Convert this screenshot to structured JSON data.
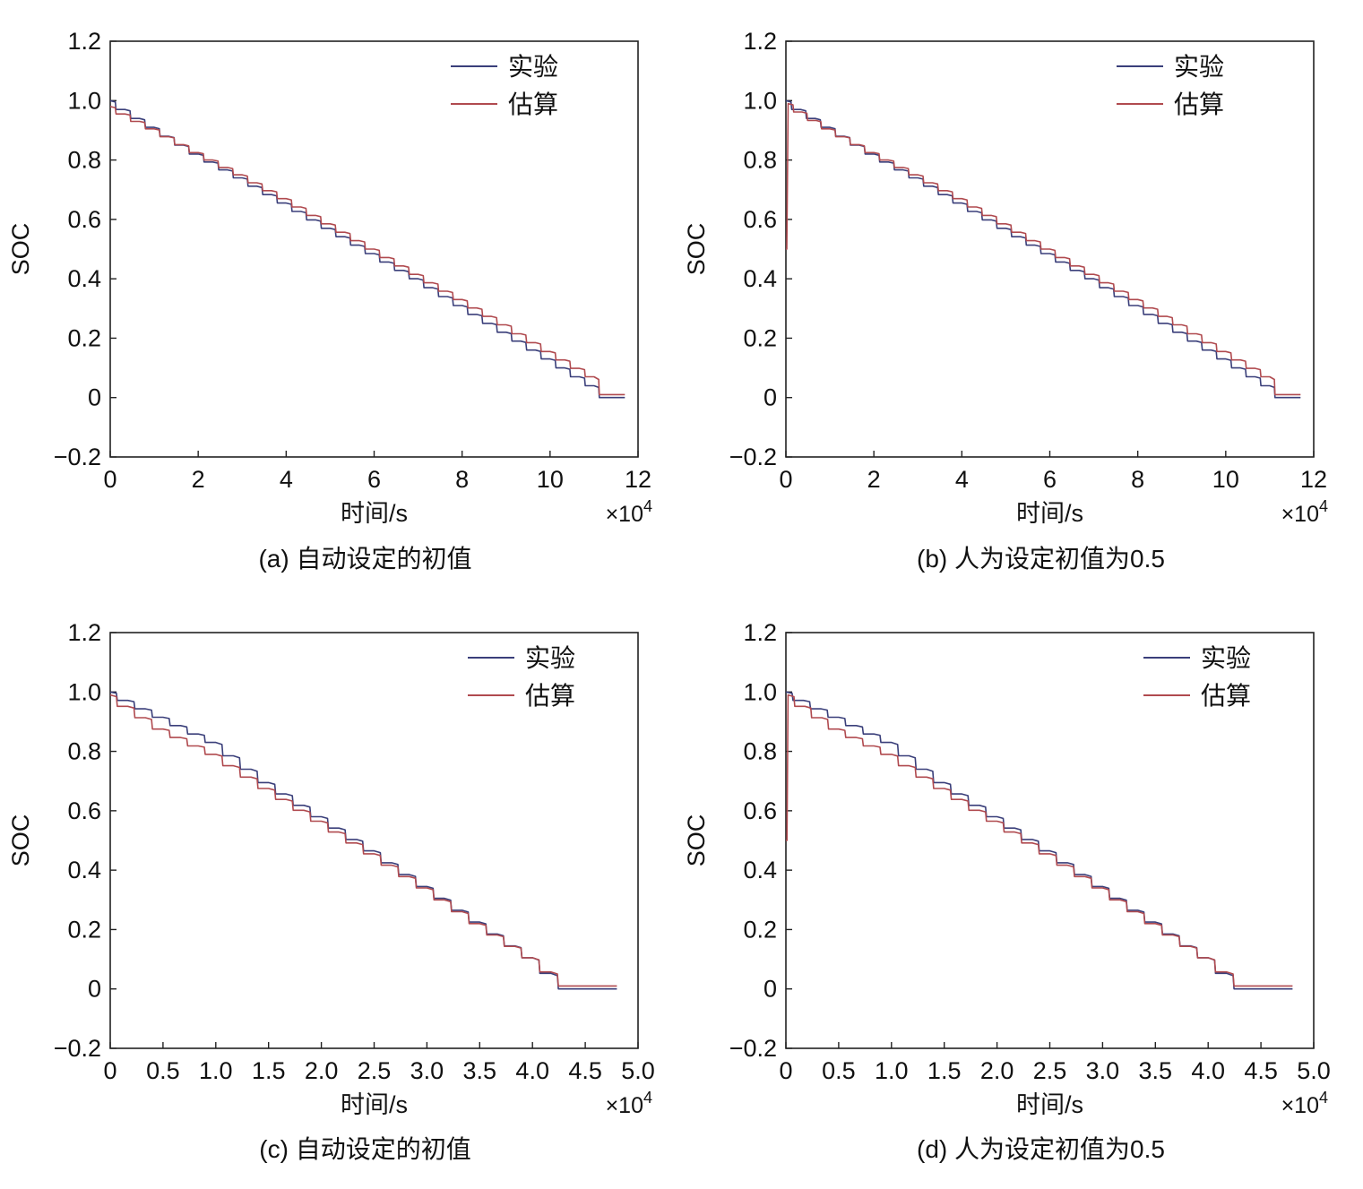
{
  "colors": {
    "experiment": "#3a3f7a",
    "estimate": "#b04a4f",
    "axis": "#222222"
  },
  "chart_data": [
    {
      "type": "line",
      "caption": "(a) 自动设定的初值",
      "xlabel": "时间/s",
      "ylabel": "SOC",
      "x_multiplier": "×10",
      "x_multiplier_exp": "4",
      "xlim": [
        0,
        12
      ],
      "ylim": [
        -0.2,
        1.2
      ],
      "xticks": [
        "0",
        "2",
        "4",
        "6",
        "8",
        "10",
        "12"
      ],
      "yticks": [
        "1.2",
        "1.0",
        "0.8",
        "0.6",
        "0.4",
        "0.2",
        "0",
        "−0.2"
      ],
      "grid": false,
      "legend": "top-right",
      "series": [
        {
          "name": "实验",
          "x": [
            0,
            1,
            2,
            3,
            4,
            5,
            6,
            7,
            8,
            9,
            10,
            11,
            11.3,
            11.7
          ],
          "y": [
            1.0,
            0.91,
            0.82,
            0.74,
            0.655,
            0.57,
            0.485,
            0.4,
            0.31,
            0.22,
            0.13,
            0.04,
            0.0,
            0.0
          ]
        },
        {
          "name": "估算",
          "x": [
            0,
            1,
            2,
            3,
            4,
            5,
            6,
            7,
            8,
            9,
            10,
            11,
            11.3,
            11.7
          ],
          "y": [
            0.98,
            0.905,
            0.825,
            0.75,
            0.67,
            0.585,
            0.5,
            0.415,
            0.33,
            0.245,
            0.155,
            0.07,
            0.01,
            0.01
          ]
        }
      ]
    },
    {
      "type": "line",
      "caption": "(b) 人为设定初值为0.5",
      "xlabel": "时间/s",
      "ylabel": "SOC",
      "x_multiplier": "×10",
      "x_multiplier_exp": "4",
      "xlim": [
        0,
        12
      ],
      "ylim": [
        -0.2,
        1.2
      ],
      "xticks": [
        "0",
        "2",
        "4",
        "6",
        "8",
        "10",
        "12"
      ],
      "yticks": [
        "1.2",
        "1.0",
        "0.8",
        "0.6",
        "0.4",
        "0.2",
        "0",
        "−0.2"
      ],
      "grid": false,
      "legend": "top-right",
      "series": [
        {
          "name": "实验",
          "x": [
            0,
            1,
            2,
            3,
            4,
            5,
            6,
            7,
            8,
            9,
            10,
            11,
            11.3,
            11.7
          ],
          "y": [
            1.0,
            0.91,
            0.82,
            0.74,
            0.655,
            0.57,
            0.485,
            0.4,
            0.31,
            0.22,
            0.13,
            0.04,
            0.0,
            0.0
          ]
        },
        {
          "name": "估算",
          "x": [
            0,
            0.02,
            0.05,
            1,
            2,
            3,
            4,
            5,
            6,
            7,
            8,
            9,
            10,
            11,
            11.3,
            11.7
          ],
          "y": [
            0.5,
            0.5,
            0.99,
            0.905,
            0.825,
            0.75,
            0.67,
            0.585,
            0.5,
            0.415,
            0.33,
            0.245,
            0.155,
            0.07,
            0.01,
            0.01
          ]
        }
      ]
    },
    {
      "type": "line",
      "caption": "(c) 自动设定的初值",
      "xlabel": "时间/s",
      "ylabel": "SOC",
      "x_multiplier": "×10",
      "x_multiplier_exp": "4",
      "xlim": [
        0,
        5.0
      ],
      "ylim": [
        -0.2,
        1.2
      ],
      "xticks": [
        "0",
        "0.5",
        "1.0",
        "1.5",
        "2.0",
        "2.5",
        "3.0",
        "3.5",
        "4.0",
        "4.5",
        "5.0"
      ],
      "yticks": [
        "1.2",
        "1.0",
        "0.8",
        "0.6",
        "0.4",
        "0.2",
        "0",
        "−0.2"
      ],
      "grid": false,
      "legend": "top-right",
      "series": [
        {
          "name": "实验",
          "x": [
            0,
            0.5,
            1.0,
            1.5,
            2.0,
            2.5,
            3.0,
            3.5,
            4.0,
            4.35,
            4.8
          ],
          "y": [
            1.0,
            0.915,
            0.83,
            0.695,
            0.58,
            0.465,
            0.345,
            0.225,
            0.105,
            0.0,
            0.0
          ]
        },
        {
          "name": "估算",
          "x": [
            0,
            0.5,
            1.0,
            1.5,
            2.0,
            2.5,
            3.0,
            3.5,
            4.0,
            4.35,
            4.8
          ],
          "y": [
            0.99,
            0.875,
            0.79,
            0.675,
            0.565,
            0.455,
            0.34,
            0.22,
            0.105,
            0.01,
            0.01
          ]
        }
      ]
    },
    {
      "type": "line",
      "caption": "(d) 人为设定初值为0.5",
      "xlabel": "时间/s",
      "ylabel": "SOC",
      "x_multiplier": "×10",
      "x_multiplier_exp": "4",
      "xlim": [
        0,
        5.0
      ],
      "ylim": [
        -0.2,
        1.2
      ],
      "xticks": [
        "0",
        "0.5",
        "1.0",
        "1.5",
        "2.0",
        "2.5",
        "3.0",
        "3.5",
        "4.0",
        "4.5",
        "5.0"
      ],
      "yticks": [
        "1.2",
        "1.0",
        "0.8",
        "0.6",
        "0.4",
        "0.2",
        "0",
        "−0.2"
      ],
      "grid": false,
      "legend": "top-right",
      "series": [
        {
          "name": "实验",
          "x": [
            0,
            0.5,
            1.0,
            1.5,
            2.0,
            2.5,
            3.0,
            3.5,
            4.0,
            4.35,
            4.8
          ],
          "y": [
            1.0,
            0.915,
            0.83,
            0.695,
            0.58,
            0.465,
            0.345,
            0.225,
            0.105,
            0.0,
            0.0
          ]
        },
        {
          "name": "估算",
          "x": [
            0,
            0.01,
            0.02,
            0.5,
            1.0,
            1.5,
            2.0,
            2.5,
            3.0,
            3.5,
            4.0,
            4.35,
            4.8
          ],
          "y": [
            0.5,
            0.5,
            0.99,
            0.875,
            0.79,
            0.675,
            0.565,
            0.455,
            0.34,
            0.22,
            0.105,
            0.01,
            0.01
          ]
        }
      ]
    }
  ]
}
